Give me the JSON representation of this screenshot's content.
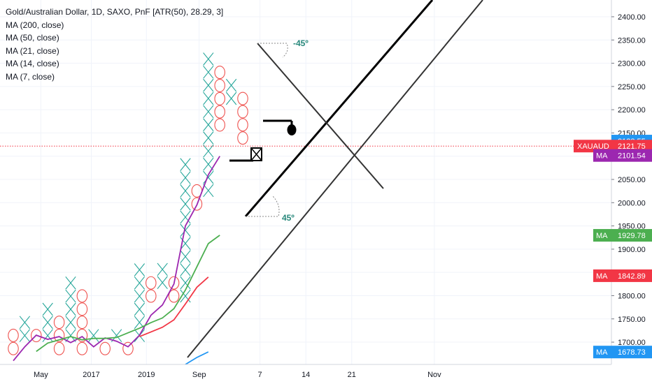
{
  "legend": {
    "title": "Gold/Australian Dollar, 1D, SAXO, PnF [ATR(50), 28.29, 3]",
    "indicators": [
      "MA (200, close)",
      "MA (50, close)",
      "MA (21, close)",
      "MA (14, close)",
      "MA (7, close)"
    ]
  },
  "chart_data": {
    "type": "point-and-figure",
    "box_size": 28.29,
    "reversal": 3,
    "ylim": [
      1652,
      2436
    ],
    "y_ticks": [
      1700,
      1750,
      1800,
      1850,
      1900,
      1950,
      2000,
      2050,
      2100,
      2150,
      2200,
      2250,
      2300,
      2350,
      2400
    ],
    "y_tick_labels": [
      "1700.00",
      "1750.00",
      "1800.00",
      "1850.00",
      "1900.00",
      "1950.00",
      "2000.00",
      "2050.00",
      "2100.00",
      "2150.00",
      "2200.00",
      "2250.00",
      "2300.00",
      "2350.00",
      "2400.00"
    ],
    "x_ticks": [
      {
        "label": "May",
        "col": 2.4
      },
      {
        "label": "2017",
        "col": 6.8
      },
      {
        "label": "2019",
        "col": 11.6
      },
      {
        "label": "Sep",
        "col": 16.2
      },
      {
        "label": "7",
        "col": 21.5
      },
      {
        "label": "14",
        "col": 25.5
      },
      {
        "label": "21",
        "col": 29.5
      },
      {
        "label": "Nov",
        "col": 36.7
      }
    ],
    "columns": [
      {
        "type": "O",
        "low": 1672,
        "high": 1729
      },
      {
        "type": "X",
        "low": 1700,
        "high": 1757
      },
      {
        "type": "O",
        "low": 1700,
        "high": 1729
      },
      {
        "type": "X",
        "low": 1700,
        "high": 1785
      },
      {
        "type": "O",
        "low": 1672,
        "high": 1757
      },
      {
        "type": "X",
        "low": 1700,
        "high": 1842
      },
      {
        "type": "O",
        "low": 1672,
        "high": 1814
      },
      {
        "type": "X",
        "low": 1700,
        "high": 1729
      },
      {
        "type": "O",
        "low": 1672,
        "high": 1700
      },
      {
        "type": "X",
        "low": 1700,
        "high": 1729
      },
      {
        "type": "O",
        "low": 1672,
        "high": 1700
      },
      {
        "type": "X",
        "low": 1700,
        "high": 1870
      },
      {
        "type": "O",
        "low": 1785,
        "high": 1842
      },
      {
        "type": "X",
        "low": 1814,
        "high": 1870
      },
      {
        "type": "O",
        "low": 1785,
        "high": 1842
      },
      {
        "type": "X",
        "low": 1785,
        "high": 2097
      },
      {
        "type": "O",
        "low": 1983,
        "high": 2040
      },
      {
        "type": "X",
        "low": 2012,
        "high": 2323
      },
      {
        "type": "O",
        "low": 2153,
        "high": 2295
      },
      {
        "type": "X",
        "low": 2210,
        "high": 2267
      },
      {
        "type": "O",
        "low": 2125,
        "high": 2238
      }
    ],
    "last_price": 2121.75,
    "ma_series": [
      {
        "indicator": "MA (7, close)",
        "color": "#9c27b0",
        "badge": "2101.54",
        "points": [
          [
            0,
            1660
          ],
          [
            1,
            1690
          ],
          [
            2,
            1715
          ],
          [
            3,
            1706
          ],
          [
            4,
            1712
          ],
          [
            5,
            1699
          ],
          [
            6,
            1712
          ],
          [
            7,
            1690
          ],
          [
            8,
            1709
          ],
          [
            9,
            1702
          ],
          [
            10,
            1690
          ],
          [
            11,
            1715
          ],
          [
            12,
            1758
          ],
          [
            13,
            1780
          ],
          [
            14,
            1825
          ],
          [
            15,
            1950
          ],
          [
            16,
            1995
          ],
          [
            17,
            2060
          ],
          [
            18,
            2100
          ]
        ]
      },
      {
        "indicator": "MA (14, close)",
        "color": "#4caf50",
        "badge": "1929.78",
        "points": [
          [
            2,
            1680
          ],
          [
            3,
            1698
          ],
          [
            4,
            1705
          ],
          [
            5,
            1712
          ],
          [
            6,
            1705
          ],
          [
            7,
            1708
          ],
          [
            8,
            1708
          ],
          [
            9,
            1710
          ],
          [
            10,
            1720
          ],
          [
            11,
            1730
          ],
          [
            12,
            1742
          ],
          [
            13,
            1752
          ],
          [
            14,
            1772
          ],
          [
            15,
            1812
          ],
          [
            16,
            1862
          ],
          [
            17,
            1912
          ],
          [
            18,
            1930
          ]
        ]
      },
      {
        "indicator": "MA (21, close)",
        "color": "#f23645",
        "badge": "1842.89",
        "points": [
          [
            11,
            1712
          ],
          [
            12,
            1722
          ],
          [
            13,
            1732
          ],
          [
            14,
            1748
          ],
          [
            15,
            1782
          ],
          [
            16,
            1818
          ],
          [
            17,
            1840
          ]
        ]
      },
      {
        "indicator": "MA (50, close)",
        "color": "#2196f3",
        "badge": "1678.73",
        "points": [
          [
            15,
            1652
          ],
          [
            16,
            1667
          ],
          [
            17,
            1679
          ]
        ]
      }
    ],
    "price_badges": [
      {
        "label": "",
        "value": "2132.55",
        "price": 2132.55,
        "color": "#2196f3"
      },
      {
        "label": "XAUAUD",
        "value": "2121.75",
        "price": 2121.75,
        "color": "#f23645"
      }
    ],
    "annotations": [
      "-45º",
      "45º"
    ]
  }
}
